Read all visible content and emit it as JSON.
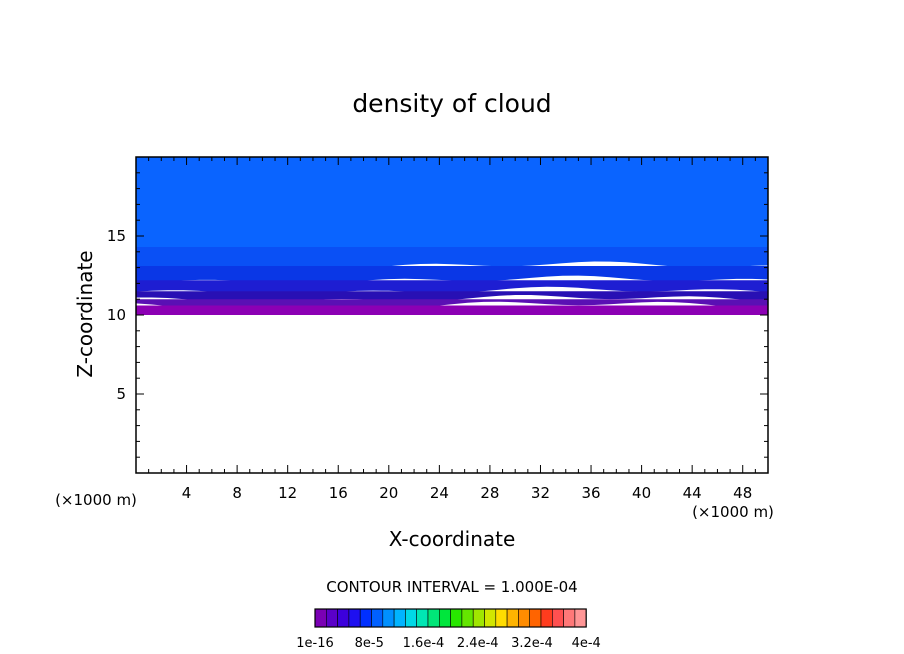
{
  "chart_data": {
    "type": "heatmap",
    "title": "density of cloud",
    "xlabel": "X-coordinate",
    "ylabel": "Z-coordinate",
    "x_unit": "(×1000 m)",
    "y_unit": "(×1000 m)",
    "xlim": [
      0,
      50
    ],
    "ylim": [
      0,
      20
    ],
    "x_ticks": [
      4,
      8,
      12,
      16,
      20,
      24,
      28,
      32,
      36,
      40,
      44,
      48
    ],
    "y_ticks": [
      5,
      10,
      15
    ],
    "contour_interval_label": "CONTOUR INTERVAL = 1.000E-04",
    "colorbar": {
      "labels": [
        "1e-16",
        "8e-5",
        "1.6e-4",
        "2.4e-4",
        "3.2e-4",
        "4e-4"
      ],
      "colors": [
        "#7a00b4",
        "#5a00c8",
        "#3c00dc",
        "#1e10f0",
        "#0030ff",
        "#0060ff",
        "#0090ff",
        "#00b4ff",
        "#00d8e6",
        "#00e6b4",
        "#00e678",
        "#00e63c",
        "#28e600",
        "#64e600",
        "#a0e600",
        "#d2e600",
        "#ffdc00",
        "#ffb400",
        "#ff8c00",
        "#ff6400",
        "#ff3c1e",
        "#ff5050",
        "#ff7878",
        "#ff9696"
      ]
    },
    "cloud_layers": [
      {
        "name": "upper",
        "color": "#0a64ff",
        "top": 20,
        "bottom": 14.3
      },
      {
        "name": "band2",
        "color": "#0a50f5",
        "top": 14.3,
        "bottom": 13.1
      },
      {
        "name": "band3",
        "color": "#0a37e6",
        "top": 13.1,
        "bottom": 12.2
      },
      {
        "name": "band4",
        "color": "#1e1ed2",
        "top": 12.2,
        "bottom": 11.5
      },
      {
        "name": "band5",
        "color": "#2810b4",
        "top": 11.5,
        "bottom": 11.0
      },
      {
        "name": "band6",
        "color": "#5a10b4",
        "top": 11.0,
        "bottom": 10.6
      },
      {
        "name": "base",
        "color": "#8c00b4",
        "top": 10.6,
        "bottom": 10.0
      }
    ]
  }
}
